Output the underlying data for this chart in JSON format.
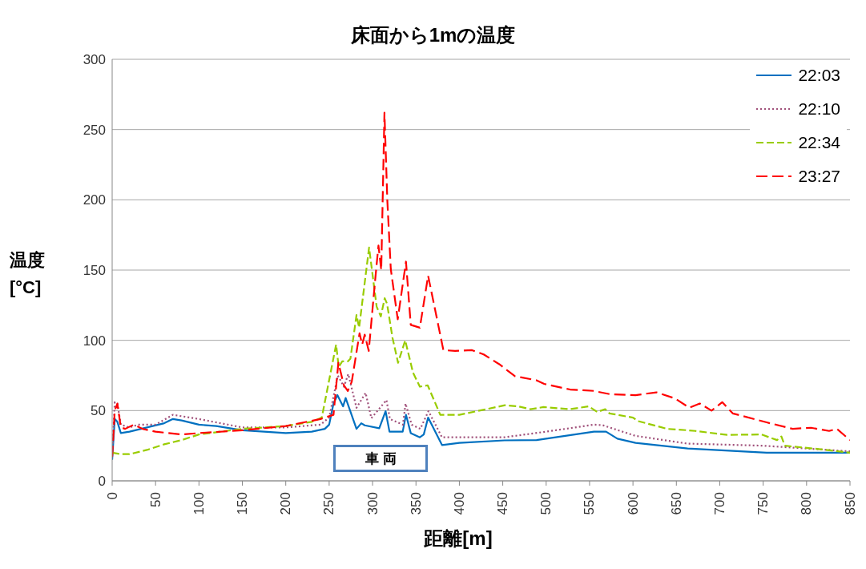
{
  "chart_data": {
    "type": "line",
    "title": "床面から1mの温度",
    "xlabel": "距離[m]",
    "ylabel": "温度\n[°C]",
    "xlim": [
      0,
      850
    ],
    "xticks": [
      0,
      50,
      100,
      150,
      200,
      250,
      300,
      350,
      400,
      450,
      500,
      550,
      600,
      650,
      700,
      750,
      800,
      850
    ],
    "ylim": [
      0,
      300
    ],
    "yticks": [
      0,
      50,
      100,
      150,
      200,
      250,
      300
    ],
    "grid": "y",
    "legend": "top right",
    "marker": "none",
    "annotations": [
      "車 両"
    ],
    "series": [
      {
        "name": "22:03",
        "color": "#0070c0",
        "line_style": "solid",
        "x": [
          0,
          3,
          6,
          10,
          20,
          40,
          60,
          70,
          80,
          100,
          120,
          150,
          200,
          230,
          245,
          250,
          255,
          259.5,
          266,
          269,
          281.5,
          287,
          291,
          307.7,
          315,
          319.5,
          334.7,
          338.5,
          344,
          354.5,
          359,
          364,
          380,
          400,
          452,
          489,
          555,
          569,
          582,
          603,
          663,
          754,
          850
        ],
        "values": [
          15,
          44,
          42,
          34,
          35,
          38,
          41,
          44,
          43,
          40,
          39,
          36,
          34,
          35,
          37,
          40,
          55,
          61,
          53,
          59,
          37,
          41,
          39.5,
          37.4,
          49.6,
          35,
          35,
          47,
          34,
          31,
          33,
          45,
          25.5,
          27,
          28.8,
          29,
          35,
          35,
          30,
          27,
          23,
          20,
          20
        ]
      },
      {
        "name": "22:10",
        "color": "#a0507a",
        "line_style": "dotted",
        "x": [
          0,
          3,
          6,
          10,
          20,
          30,
          50,
          70,
          100,
          150,
          200,
          240,
          250,
          255,
          260,
          267,
          272,
          281.5,
          292,
          298.6,
          316,
          320,
          335,
          338,
          345,
          355,
          364.4,
          380,
          400,
          452,
          500,
          555,
          565,
          603,
          663,
          750,
          800,
          850
        ],
        "values": [
          18,
          56,
          55,
          40,
          38,
          40,
          40,
          47,
          44,
          38,
          38,
          40,
          45,
          60,
          75,
          67,
          76,
          52,
          62.6,
          44.6,
          57.5,
          44,
          40,
          55,
          40,
          37,
          49.6,
          31,
          31,
          31,
          35,
          40,
          39.6,
          32,
          26.5,
          25,
          23,
          21
        ]
      },
      {
        "name": "22:34",
        "color": "#99cc00",
        "line_style": "dashed",
        "x": [
          0,
          10,
          20,
          40,
          60,
          80,
          100,
          150,
          200,
          230,
          241.5,
          258,
          261,
          265,
          271.5,
          274.5,
          281.5,
          284.5,
          296,
          304.7,
          309.5,
          314,
          316.7,
          323,
          329.4,
          337.6,
          346.6,
          354.5,
          363.5,
          378,
          400,
          452.5,
          467.6,
          482,
          497,
          527.6,
          549,
          559,
          568,
          573,
          600,
          606,
          639.5,
          663,
          672,
          708.6,
          748,
          766,
          771,
          775,
          814,
          850
        ],
        "values": [
          20,
          19,
          19,
          22,
          26,
          29,
          33,
          37,
          39,
          42,
          45,
          97,
          81,
          85,
          85,
          87,
          118,
          109,
          166,
          124,
          117,
          130,
          126,
          101.7,
          84,
          100,
          77,
          67,
          68,
          47,
          47,
          53.8,
          53,
          51,
          52.5,
          51,
          53,
          49,
          51,
          48,
          45,
          42.5,
          37,
          36,
          35.5,
          32.7,
          33,
          29,
          31.6,
          25,
          22.6,
          20
        ]
      },
      {
        "name": "23:27",
        "color": "#ff0000",
        "line_style": "dashed",
        "x": [
          0,
          3,
          6,
          10,
          15,
          25,
          35,
          50,
          80,
          100,
          150,
          200,
          240,
          250,
          255,
          260.6,
          267,
          271.5,
          276,
          285,
          288,
          291,
          295.6,
          303,
          306.8,
          310,
          313.7,
          317,
          321,
          329,
          338.5,
          344,
          354.5,
          364,
          381.6,
          395,
          414.6,
          428,
          446,
          464,
          488.7,
          497.7,
          527.6,
          555,
          573,
          603,
          627,
          648.6,
          665,
          677,
          690.5,
          702.8,
          714.9,
          754,
          784,
          805,
          826,
          835,
          850
        ],
        "values": [
          17,
          50,
          55,
          38,
          37,
          40,
          37,
          35,
          33,
          34,
          36,
          39,
          44,
          46,
          47,
          84,
          68,
          64,
          70.5,
          105,
          97,
          104,
          92.5,
          143,
          167.5,
          150,
          262,
          199.7,
          150.7,
          115,
          156,
          111,
          109,
          146,
          93,
          92.5,
          93,
          90,
          83,
          74.5,
          71.6,
          69,
          65,
          64,
          61.7,
          61,
          63,
          58.6,
          52,
          55,
          50,
          56,
          48,
          41.6,
          37,
          37.8,
          35.5,
          37,
          29
        ]
      }
    ]
  }
}
